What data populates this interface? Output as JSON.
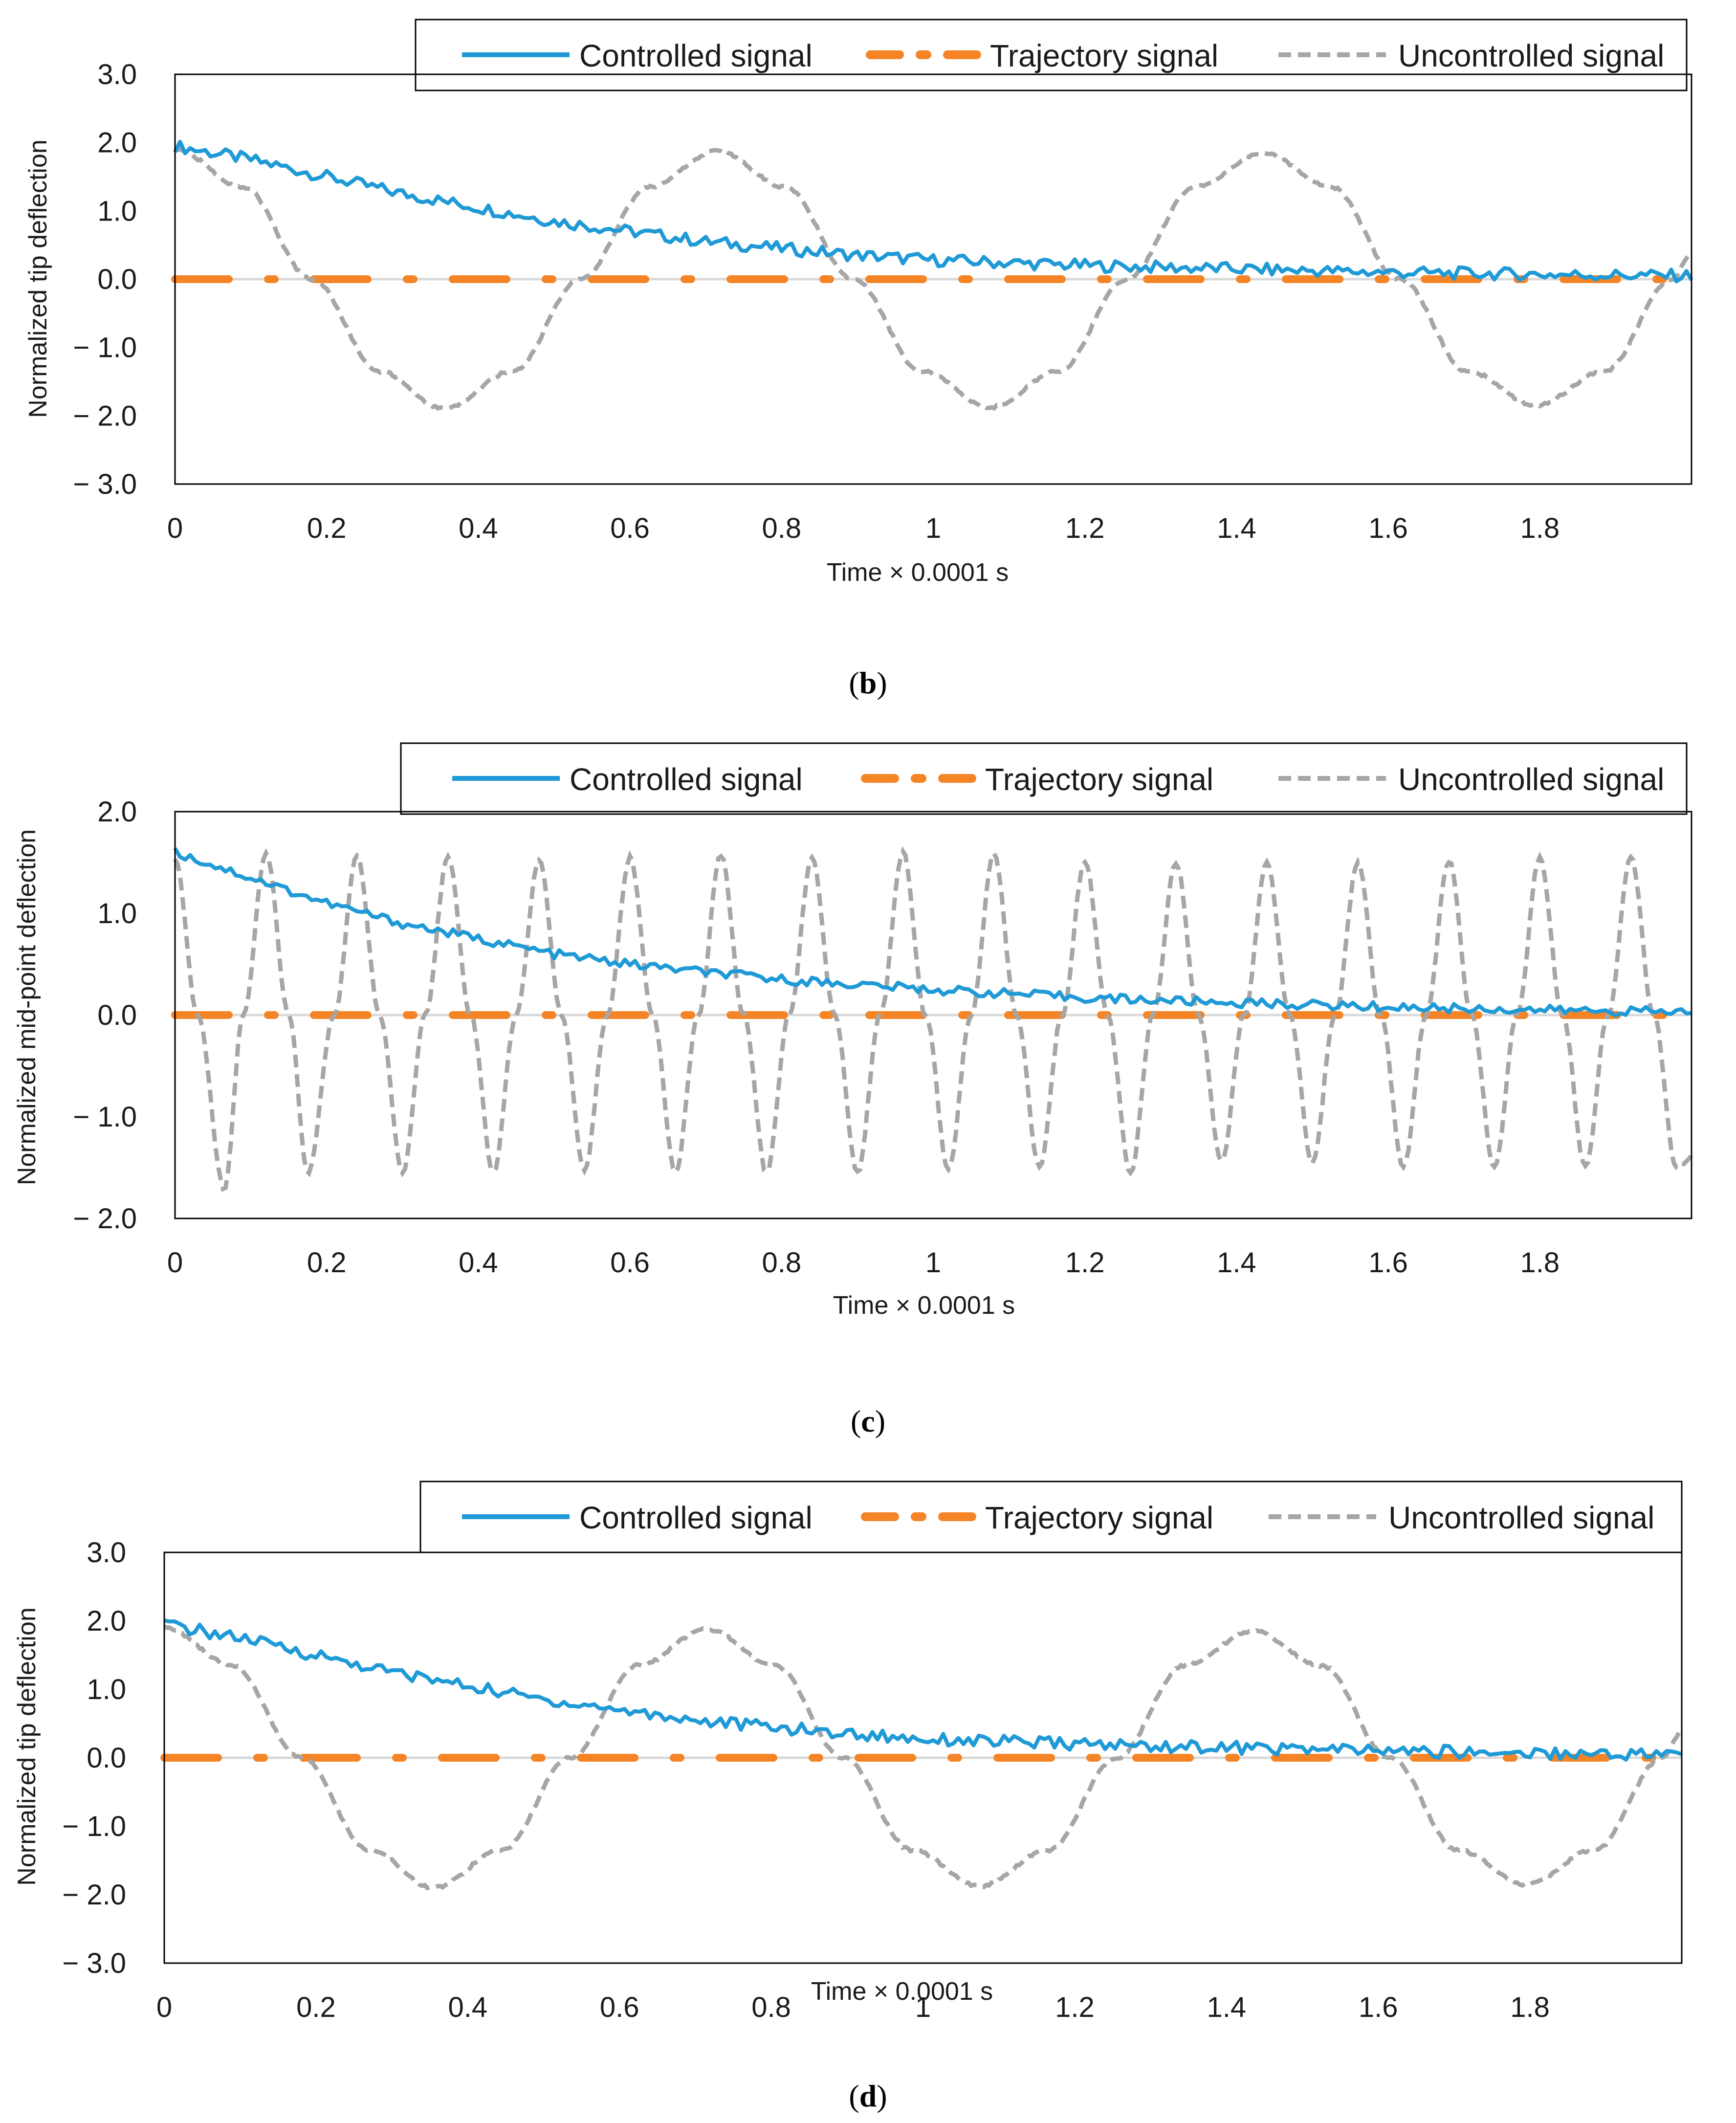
{
  "legend": {
    "controlled": "Controlled signal",
    "trajectory": "Trajectory signal",
    "uncontrolled": "Uncontrolled signal"
  },
  "colors": {
    "controlled": "#1f9ad6",
    "trajectory": "#f58426",
    "uncontrolled": "#a6a6a6",
    "zero_line": "#d9d9d9",
    "frame": "#000000"
  },
  "chart_data": [
    {
      "id": "b",
      "type": "line",
      "caption_letter": "b",
      "xlabel": "Time × 0.0001 s",
      "ylabel": "Normalized tip deflection",
      "xlim": [
        0,
        2.0
      ],
      "ylim": [
        -3.0,
        3.0
      ],
      "x_ticks": [
        "0",
        "0.2",
        "0.4",
        "0.6",
        "0.8",
        "1",
        "1.2",
        "1.4",
        "1.6",
        "1.8"
      ],
      "y_ticks": [
        "3.0",
        "2.0",
        "1.0",
        "0.0",
        "− 1.0",
        "− 2.0",
        "− 3.0"
      ],
      "series": [
        {
          "name": "Controlled signal",
          "key": "controlled",
          "x": [
            0,
            0.1,
            0.2,
            0.3,
            0.4,
            0.5,
            0.6,
            0.7,
            0.8,
            0.9,
            1.0,
            1.2,
            1.4,
            1.6,
            1.8,
            2.0
          ],
          "y": [
            1.95,
            1.75,
            1.5,
            1.25,
            1.05,
            0.85,
            0.7,
            0.55,
            0.45,
            0.35,
            0.28,
            0.2,
            0.15,
            0.1,
            0.07,
            0.05
          ]
        },
        {
          "name": "Trajectory signal",
          "key": "trajectory",
          "x": [
            0,
            2.0
          ],
          "y": [
            0.0,
            0.0
          ]
        },
        {
          "name": "Uncontrolled signal",
          "key": "uncontrolled",
          "x": [
            0,
            0.09,
            0.18,
            0.27,
            0.355,
            0.445,
            0.535,
            0.625,
            0.715,
            0.805,
            0.895,
            0.985,
            1.075,
            1.165,
            1.255,
            1.345,
            1.435,
            1.525,
            1.615,
            1.705,
            1.795,
            1.885,
            1.975,
            2.0
          ],
          "y": [
            1.9,
            1.35,
            0.0,
            -1.35,
            -1.9,
            -1.35,
            0.0,
            1.35,
            1.88,
            1.35,
            0.0,
            -1.35,
            -1.88,
            -1.35,
            0.0,
            1.35,
            1.85,
            1.35,
            0.0,
            -1.35,
            -1.85,
            -1.35,
            0.0,
            0.38
          ]
        }
      ]
    },
    {
      "id": "c",
      "type": "line",
      "caption_letter": "c",
      "xlabel": "Time × 0.0001 s",
      "ylabel": "Normalized mid-point deflection",
      "xlim": [
        0,
        2.0
      ],
      "ylim": [
        -2.0,
        2.0
      ],
      "x_ticks": [
        "0",
        "0.2",
        "0.4",
        "0.6",
        "0.8",
        "1",
        "1.2",
        "1.4",
        "1.6",
        "1.8"
      ],
      "y_ticks": [
        "2.0",
        "1.0",
        "0.0",
        "− 1.0",
        "− 2.0"
      ],
      "series": [
        {
          "name": "Controlled signal",
          "key": "controlled",
          "x": [
            0,
            0.1,
            0.2,
            0.3,
            0.4,
            0.5,
            0.6,
            0.7,
            0.8,
            0.9,
            1.0,
            1.2,
            1.4,
            1.6,
            1.8,
            2.0
          ],
          "y": [
            1.6,
            1.35,
            1.1,
            0.9,
            0.75,
            0.6,
            0.5,
            0.42,
            0.35,
            0.3,
            0.25,
            0.17,
            0.12,
            0.08,
            0.05,
            0.03
          ]
        },
        {
          "name": "Trajectory signal",
          "key": "trajectory",
          "x": [
            0,
            2.0
          ],
          "y": [
            0.0,
            0.0
          ]
        },
        {
          "name": "Uncontrolled signal",
          "key": "uncontrolled",
          "x": [
            0,
            0.03,
            0.065,
            0.09,
            0.12,
            0.15,
            0.175,
            0.21,
            0.24,
            0.27,
            0.3,
            0.33,
            0.36,
            0.39,
            0.42,
            0.45,
            0.48,
            0.51,
            0.54,
            0.57,
            0.6,
            0.63,
            0.66,
            0.69,
            0.72,
            0.75,
            0.78,
            0.81,
            0.84,
            0.87,
            0.9,
            0.93,
            0.96,
            0.99,
            1.02,
            1.05,
            1.08,
            1.11,
            1.14,
            1.17,
            1.2,
            1.23,
            1.26,
            1.29,
            1.32,
            1.35,
            1.38,
            1.41,
            1.44,
            1.47,
            1.5,
            1.53,
            1.56,
            1.59,
            1.62,
            1.65,
            1.68,
            1.71,
            1.74,
            1.77,
            1.8,
            1.83,
            1.86,
            1.89,
            1.92,
            1.95,
            1.98,
            2.0
          ],
          "y": [
            1.55,
            0.0,
            -1.7,
            0.0,
            1.6,
            0.0,
            -1.55,
            0.0,
            1.58,
            0.0,
            -1.55,
            0.0,
            1.55,
            0.0,
            -1.55,
            0.0,
            1.52,
            0.0,
            -1.52,
            0.0,
            1.55,
            0.0,
            -1.55,
            0.0,
            1.58,
            0.0,
            -1.55,
            0.0,
            1.55,
            0.0,
            -1.55,
            0.0,
            1.6,
            0.0,
            -1.52,
            0.0,
            1.58,
            0.0,
            -1.5,
            0.0,
            1.52,
            0.0,
            -1.55,
            0.0,
            1.5,
            0.0,
            -1.45,
            0.0,
            1.5,
            0.0,
            -1.45,
            0.0,
            1.5,
            0.0,
            -1.5,
            0.0,
            1.52,
            0.0,
            -1.5,
            0.0,
            1.55,
            0.0,
            -1.5,
            0.0,
            1.55,
            0.0,
            -1.5,
            -1.4
          ]
        }
      ]
    },
    {
      "id": "d",
      "type": "line",
      "caption_letter": "d",
      "xlabel": "Time × 0.0001 s",
      "ylabel": "Normalized tip deflection",
      "xlim": [
        0,
        2.0
      ],
      "ylim": [
        -3.0,
        3.0
      ],
      "x_ticks": [
        "0",
        "0.2",
        "0.4",
        "0.6",
        "0.8",
        "1",
        "1.2",
        "1.4",
        "1.6",
        "1.8"
      ],
      "y_ticks": [
        "3.0",
        "2.0",
        "1.0",
        "0.0",
        "− 1.0",
        "− 2.0",
        "− 3.0"
      ],
      "series": [
        {
          "name": "Controlled signal",
          "key": "controlled",
          "x": [
            0,
            0.1,
            0.2,
            0.3,
            0.4,
            0.5,
            0.6,
            0.7,
            0.8,
            0.9,
            1.0,
            1.2,
            1.4,
            1.6,
            1.8,
            2.0
          ],
          "y": [
            1.95,
            1.75,
            1.5,
            1.25,
            1.05,
            0.85,
            0.7,
            0.55,
            0.45,
            0.35,
            0.28,
            0.2,
            0.15,
            0.1,
            0.07,
            0.05
          ]
        },
        {
          "name": "Trajectory signal",
          "key": "trajectory",
          "x": [
            0,
            2.0
          ],
          "y": [
            0.0,
            0.0
          ]
        },
        {
          "name": "Uncontrolled signal",
          "key": "uncontrolled",
          "x": [
            0,
            0.09,
            0.18,
            0.27,
            0.355,
            0.445,
            0.535,
            0.625,
            0.715,
            0.805,
            0.895,
            0.985,
            1.075,
            1.165,
            1.255,
            1.345,
            1.435,
            1.525,
            1.615,
            1.705,
            1.795,
            1.885,
            1.975,
            2.0
          ],
          "y": [
            1.9,
            1.35,
            0.0,
            -1.35,
            -1.9,
            -1.35,
            0.0,
            1.35,
            1.88,
            1.35,
            0.0,
            -1.35,
            -1.88,
            -1.35,
            0.0,
            1.35,
            1.85,
            1.35,
            0.0,
            -1.35,
            -1.85,
            -1.35,
            0.0,
            0.38
          ]
        }
      ]
    }
  ]
}
